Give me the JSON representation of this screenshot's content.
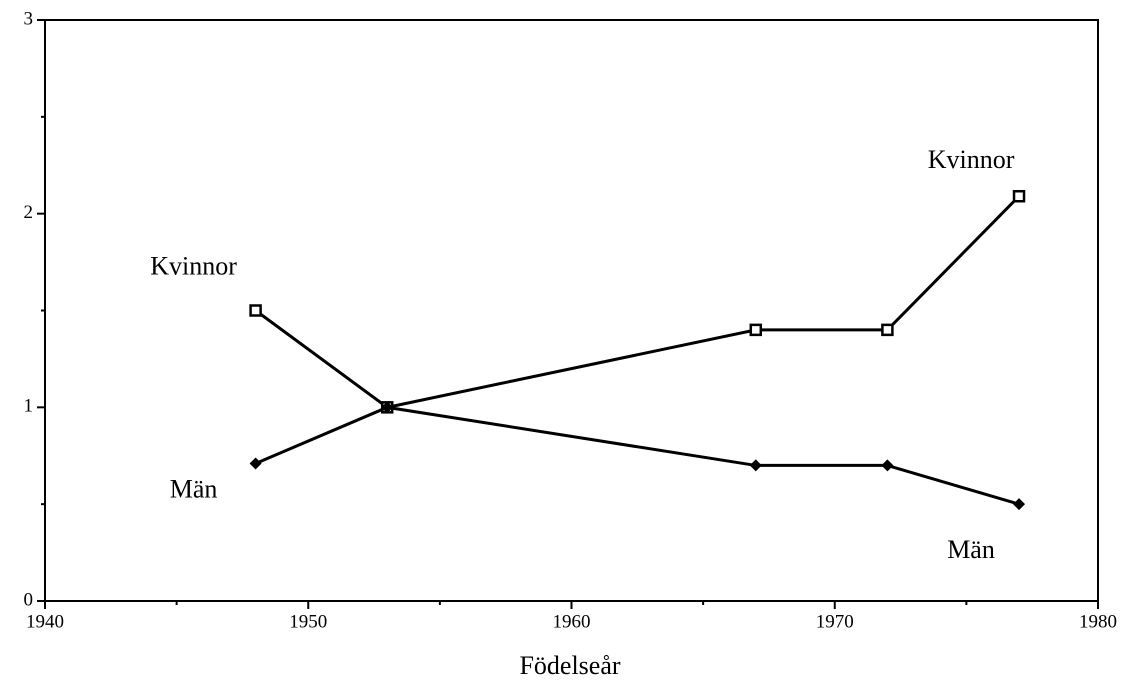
{
  "chart_data": {
    "type": "line",
    "xlabel": "Födelseår",
    "xlim": [
      1940,
      1980
    ],
    "xticks": [
      1940,
      1950,
      1960,
      1970,
      1980
    ],
    "xminorticks": [
      1945,
      1955,
      1965,
      1975
    ],
    "ylim": [
      0,
      3
    ],
    "yticks": [
      0,
      1,
      2,
      3
    ],
    "yminorticks": [
      0.5,
      1.5,
      2.5
    ],
    "grid": false,
    "series": [
      {
        "name": "Kvinnor",
        "color": "#000000",
        "marker": "square",
        "x": [
          1948,
          1953,
          1967,
          1972,
          1977
        ],
        "values": [
          1.5,
          1.0,
          1.4,
          1.4,
          2.09
        ]
      },
      {
        "name": "Män",
        "color": "#000000",
        "marker": "diamond",
        "x": [
          1948,
          1953,
          1967,
          1972,
          1977
        ],
        "values": [
          0.71,
          1.0,
          0.7,
          0.7,
          0.5
        ]
      }
    ]
  }
}
